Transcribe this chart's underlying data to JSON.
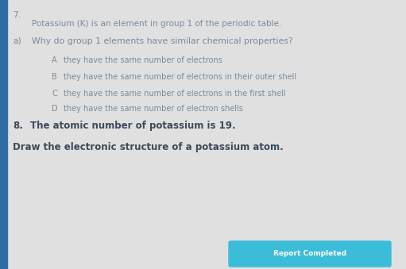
{
  "background_color": "#e0e0e0",
  "left_bar_color": "#2e6da4",
  "button_color": "#3bbcd8",
  "button_text": "Report Completed",
  "question_number": "7.",
  "intro_text": "Potassium (K) is an element in group 1 of the periodic table.",
  "part_label": "a)",
  "part_question": "Why do group 1 elements have similar chemical properties?",
  "options": [
    {
      "letter": "A",
      "text": "they have the same number of electrons"
    },
    {
      "letter": "B",
      "text": "they have the same number of electrons in their outer shell"
    },
    {
      "letter": "C",
      "text": "they have the same number of electrons in the first shell"
    },
    {
      "letter": "D",
      "text": "they have the same number of electron shells"
    }
  ],
  "q8_number": "8.",
  "q8_text": "The atomic number of potassium is 19.",
  "draw_instruction": "Draw the electronic structure of a potassium atom.",
  "text_color": "#7a8a9a",
  "bold_text_color": "#3a4a5a",
  "font_size_intro": 7.5,
  "font_size_part": 7.8,
  "font_size_options": 7.0,
  "font_size_q8": 8.5,
  "font_size_draw": 8.5,
  "font_size_button": 6.5
}
